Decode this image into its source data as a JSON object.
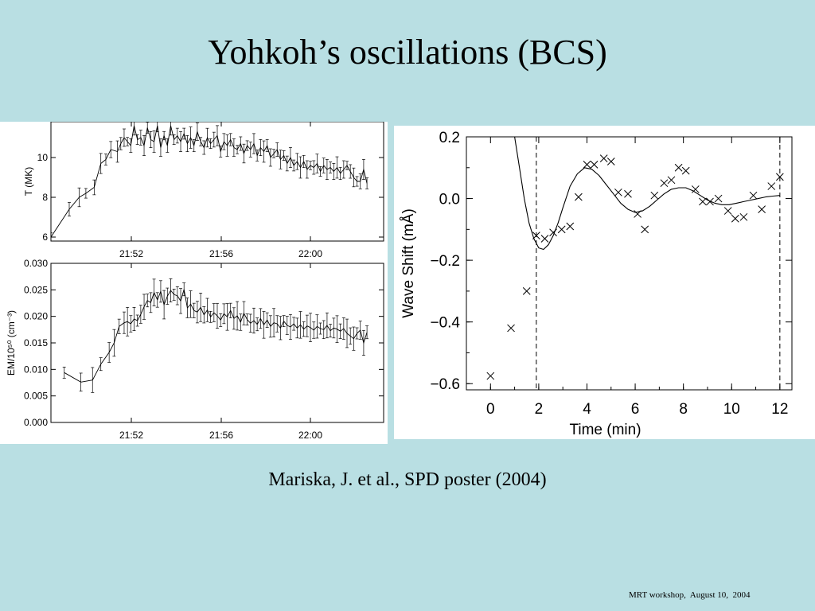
{
  "slide": {
    "title": "Yohkoh’s oscillations (BCS)",
    "citation": "Mariska, J. et al.,  SPD poster (2004)",
    "footer": "MRT workshop,  August 10,  2004",
    "background": "#b9dfe3"
  },
  "chart_data": [
    {
      "type": "line",
      "ylabel": "T (MK)",
      "ylim": [
        5.8,
        11.8
      ],
      "yticks": [
        "6",
        "8",
        "10"
      ],
      "xlim": [
        0,
        100
      ],
      "xticks": [
        "21:52",
        "21:56",
        "22:00"
      ],
      "grid": false,
      "error_bars": true,
      "x": [
        0,
        5.5,
        8.5,
        10.5,
        13,
        15,
        16.5,
        18,
        20,
        21,
        22,
        23,
        24,
        25,
        26,
        27,
        28,
        29,
        30,
        31,
        32,
        33,
        34,
        35,
        36,
        37,
        38,
        39,
        40,
        41,
        42,
        43,
        44,
        45,
        46,
        47,
        48,
        49,
        50,
        51,
        52,
        53,
        54,
        55,
        56,
        57,
        58,
        59,
        60,
        61,
        62,
        63,
        64,
        65,
        66,
        67,
        68,
        69,
        70,
        71,
        72,
        73,
        74,
        75,
        76,
        77,
        78,
        79,
        80,
        81,
        82,
        83,
        84,
        85,
        86,
        87,
        88,
        89,
        90,
        91,
        92,
        93,
        94,
        95
      ],
      "y": [
        6.0,
        7.4,
        8.0,
        8.2,
        8.5,
        9.7,
        9.9,
        10.4,
        10.3,
        10.7,
        11.0,
        10.8,
        10.6,
        11.6,
        10.9,
        11.0,
        10.6,
        11.5,
        10.9,
        10.8,
        11.6,
        10.5,
        11.1,
        10.6,
        11.6,
        10.9,
        11.1,
        10.8,
        11.2,
        10.7,
        11.0,
        10.6,
        11.3,
        10.8,
        10.5,
        11.0,
        10.7,
        10.9,
        11.1,
        10.3,
        10.8,
        10.6,
        10.9,
        10.5,
        10.4,
        10.7,
        10.2,
        10.6,
        10.4,
        10.7,
        10.1,
        10.5,
        10.3,
        10.6,
        10.0,
        10.2,
        10.4,
        9.9,
        10.1,
        9.7,
        10.0,
        9.6,
        9.8,
        9.5,
        9.8,
        9.4,
        9.6,
        9.5,
        9.7,
        9.3,
        9.6,
        9.4,
        9.5,
        9.3,
        9.5,
        9.2,
        9.4,
        9.6,
        9.3,
        9.0,
        8.8,
        8.8,
        9.4,
        8.7
      ]
    },
    {
      "type": "line",
      "ylabel": "EM/10⁵⁰ (cm⁻³)",
      "ylim": [
        0.0,
        0.03
      ],
      "yticks": [
        "0.000",
        "0.005",
        "0.010",
        "0.015",
        "0.020",
        "0.025",
        "0.030"
      ],
      "xlim": [
        0,
        100
      ],
      "xticks": [
        "21:52",
        "21:56",
        "22:00"
      ],
      "grid": false,
      "error_bars": true,
      "x": [
        4,
        9,
        12.5,
        15,
        17.5,
        19,
        20.5,
        22,
        23,
        24,
        25,
        26,
        27,
        28,
        29,
        30,
        31,
        32,
        33,
        34,
        35,
        36,
        37,
        38,
        39,
        40,
        41,
        42,
        43,
        44,
        45,
        46,
        47,
        48,
        49,
        50,
        51,
        52,
        53,
        54,
        55,
        56,
        57,
        58,
        59,
        60,
        61,
        62,
        63,
        64,
        65,
        66,
        67,
        68,
        69,
        70,
        71,
        72,
        73,
        74,
        75,
        76,
        77,
        78,
        79,
        80,
        81,
        82,
        83,
        84,
        85,
        86,
        87,
        88,
        89,
        90,
        91,
        92,
        93,
        94,
        95
      ],
      "y": [
        0.0094,
        0.0076,
        0.008,
        0.011,
        0.0132,
        0.015,
        0.0181,
        0.0188,
        0.019,
        0.0186,
        0.0195,
        0.0192,
        0.0204,
        0.0218,
        0.023,
        0.0226,
        0.0245,
        0.0231,
        0.0247,
        0.0222,
        0.0238,
        0.0249,
        0.0241,
        0.0239,
        0.0229,
        0.0251,
        0.0216,
        0.0223,
        0.0211,
        0.0208,
        0.0217,
        0.0203,
        0.0212,
        0.0199,
        0.0207,
        0.0201,
        0.0193,
        0.0205,
        0.0199,
        0.0211,
        0.0196,
        0.0201,
        0.0189,
        0.0206,
        0.0194,
        0.0187,
        0.0192,
        0.0185,
        0.0196,
        0.0184,
        0.0193,
        0.0181,
        0.0188,
        0.0186,
        0.0178,
        0.0191,
        0.0183,
        0.018,
        0.0186,
        0.0178,
        0.0184,
        0.0176,
        0.0182,
        0.0179,
        0.0174,
        0.0181,
        0.0177,
        0.0175,
        0.0183,
        0.0173,
        0.0178,
        0.0176,
        0.0172,
        0.0177,
        0.0168,
        0.0163,
        0.0158,
        0.0168,
        0.0174,
        0.015,
        0.017
      ]
    },
    {
      "type": "scatter",
      "xlabel": "Time (min)",
      "ylabel": "Wave Shift (mÅ)",
      "xlim": [
        -1,
        12.5
      ],
      "ylim": [
        -0.62,
        0.2
      ],
      "xticks": [
        "0",
        "2",
        "4",
        "6",
        "8",
        "10",
        "12"
      ],
      "yticks": [
        "−0.6",
        "−0.4",
        "−0.2",
        "0.0",
        "0.2"
      ],
      "grid": false,
      "marker": "x",
      "vlines": [
        1.9,
        12.0
      ],
      "x": [
        0.0,
        0.85,
        1.5,
        1.9,
        2.25,
        2.6,
        2.95,
        3.3,
        3.65,
        4.0,
        4.3,
        4.7,
        5.0,
        5.3,
        5.7,
        6.1,
        6.4,
        6.8,
        7.2,
        7.5,
        7.8,
        8.1,
        8.5,
        8.8,
        9.1,
        9.45,
        9.85,
        10.15,
        10.5,
        10.9,
        11.25,
        11.65,
        12.0
      ],
      "y": [
        -0.575,
        -0.42,
        -0.3,
        -0.12,
        -0.13,
        -0.11,
        -0.1,
        -0.09,
        0.005,
        0.11,
        0.11,
        0.13,
        0.12,
        0.02,
        0.015,
        -0.05,
        -0.1,
        0.01,
        0.05,
        0.06,
        0.1,
        0.09,
        0.03,
        -0.01,
        -0.01,
        0.0,
        -0.04,
        -0.065,
        -0.06,
        0.01,
        -0.035,
        0.04,
        0.07
      ],
      "fit": {
        "x": [
          1.0,
          1.2,
          1.4,
          1.6,
          1.8,
          2.0,
          2.2,
          2.4,
          2.6,
          2.8,
          3.0,
          3.3,
          3.6,
          3.9,
          4.2,
          4.5,
          4.8,
          5.1,
          5.4,
          5.7,
          6.0,
          6.3,
          6.6,
          6.9,
          7.2,
          7.5,
          7.8,
          8.1,
          8.4,
          8.7,
          9.0,
          9.3,
          9.6,
          9.9,
          10.2,
          10.5,
          10.8,
          11.1,
          11.4,
          11.7,
          12.0
        ],
        "y": [
          0.2,
          0.1,
          0.0,
          -0.08,
          -0.13,
          -0.16,
          -0.165,
          -0.15,
          -0.12,
          -0.08,
          -0.03,
          0.04,
          0.08,
          0.1,
          0.095,
          0.075,
          0.045,
          0.015,
          -0.015,
          -0.035,
          -0.045,
          -0.04,
          -0.025,
          -0.005,
          0.015,
          0.03,
          0.035,
          0.035,
          0.025,
          0.01,
          -0.005,
          -0.015,
          -0.02,
          -0.02,
          -0.015,
          -0.01,
          -0.005,
          0.0,
          0.005,
          0.008,
          0.01
        ]
      }
    }
  ]
}
